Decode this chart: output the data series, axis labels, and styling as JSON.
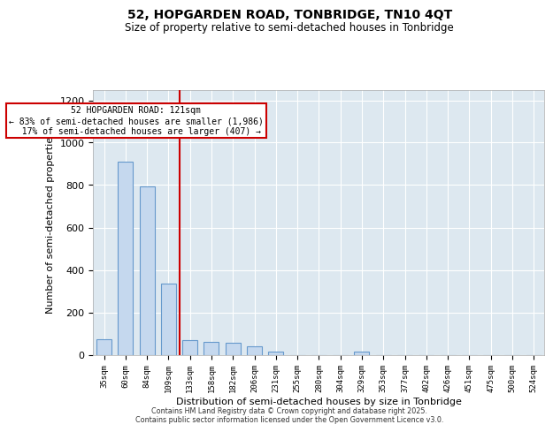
{
  "title1": "52, HOPGARDEN ROAD, TONBRIDGE, TN10 4QT",
  "title2": "Size of property relative to semi-detached houses in Tonbridge",
  "xlabel": "Distribution of semi-detached houses by size in Tonbridge",
  "ylabel": "Number of semi-detached properties",
  "bins": [
    "35sqm",
    "60sqm",
    "84sqm",
    "109sqm",
    "133sqm",
    "158sqm",
    "182sqm",
    "206sqm",
    "231sqm",
    "255sqm",
    "280sqm",
    "304sqm",
    "329sqm",
    "353sqm",
    "377sqm",
    "402sqm",
    "426sqm",
    "451sqm",
    "475sqm",
    "500sqm",
    "524sqm"
  ],
  "values": [
    75,
    910,
    795,
    335,
    70,
    60,
    55,
    40,
    15,
    0,
    0,
    0,
    15,
    0,
    0,
    0,
    0,
    0,
    0,
    0,
    0
  ],
  "bar_color": "#c5d8ee",
  "bar_edge_color": "#6699cc",
  "annotation_text": "52 HOPGARDEN ROAD: 121sqm\n← 83% of semi-detached houses are smaller (1,986)\n  17% of semi-detached houses are larger (407) →",
  "annotation_box_color": "#cc0000",
  "vline_color": "#cc0000",
  "ylim": [
    0,
    1250
  ],
  "yticks": [
    0,
    200,
    400,
    600,
    800,
    1000,
    1200
  ],
  "background_color": "#dde8f0",
  "footer1": "Contains HM Land Registry data © Crown copyright and database right 2025.",
  "footer2": "Contains public sector information licensed under the Open Government Licence v3.0."
}
